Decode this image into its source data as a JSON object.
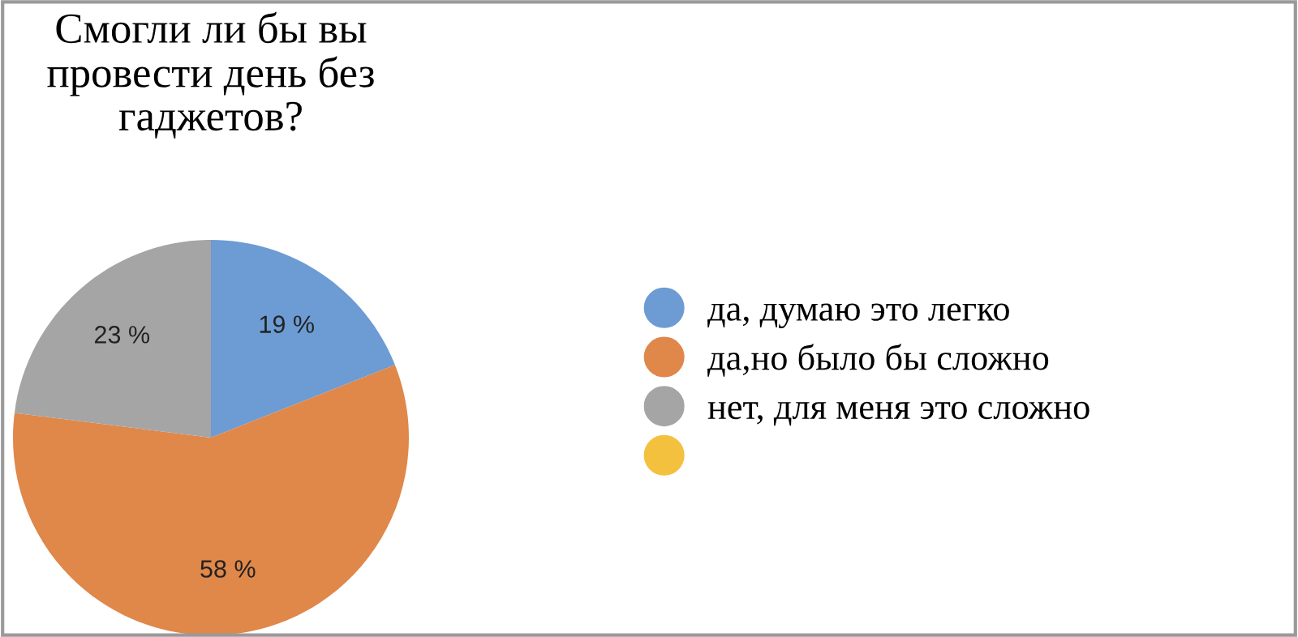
{
  "chart_data": {
    "type": "pie",
    "title": "Смогли ли бы вы\nпровести день без\nгаджетов?",
    "categories": [
      "да, думаю это легко",
      "да,но было бы сложно",
      "нет, для меня это сложно",
      null
    ],
    "values": [
      19,
      58,
      23,
      0
    ],
    "colors": [
      "#6d9bd3",
      "#e0874a",
      "#a5a5a5",
      "#f4c13e"
    ],
    "value_labels": [
      "19 %",
      "58 %",
      "23 %",
      null
    ],
    "legend": "right"
  }
}
